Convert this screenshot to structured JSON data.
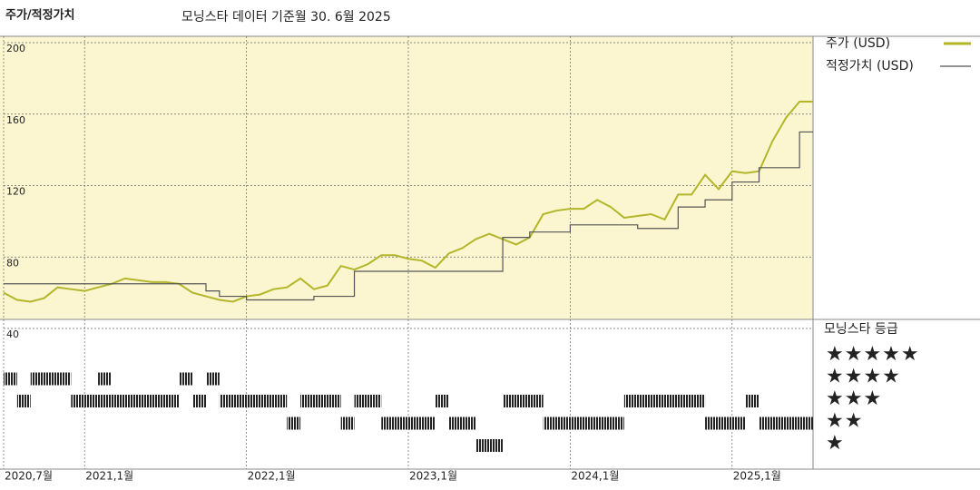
{
  "chart_data": {
    "type": "line",
    "title": "주가/적정가치",
    "subtitle": "모닝스타 데이터 기준월 30. 6월 2025",
    "x": [
      "2020-07",
      "2020-08",
      "2020-09",
      "2020-10",
      "2020-11",
      "2020-12",
      "2021-01",
      "2021-02",
      "2021-03",
      "2021-04",
      "2021-05",
      "2021-06",
      "2021-07",
      "2021-08",
      "2021-09",
      "2021-10",
      "2021-11",
      "2021-12",
      "2022-01",
      "2022-02",
      "2022-03",
      "2022-04",
      "2022-05",
      "2022-06",
      "2022-07",
      "2022-08",
      "2022-09",
      "2022-10",
      "2022-11",
      "2022-12",
      "2023-01",
      "2023-02",
      "2023-03",
      "2023-04",
      "2023-05",
      "2023-06",
      "2023-07",
      "2023-08",
      "2023-09",
      "2023-10",
      "2023-11",
      "2023-12",
      "2024-01",
      "2024-02",
      "2024-03",
      "2024-04",
      "2024-05",
      "2024-06",
      "2024-07",
      "2024-08",
      "2024-09",
      "2024-10",
      "2024-11",
      "2024-12",
      "2025-01",
      "2025-02",
      "2025-03",
      "2025-04",
      "2025-05",
      "2025-06"
    ],
    "series": [
      {
        "name": "주가 (USD)",
        "color": "#b3b52a",
        "step": false,
        "values": [
          60,
          56,
          55,
          57,
          63,
          62,
          61,
          63,
          65,
          68,
          67,
          66,
          66,
          65,
          60,
          58,
          56,
          55,
          58,
          59,
          62,
          63,
          68,
          62,
          64,
          75,
          73,
          76,
          81,
          81,
          79,
          78,
          74,
          82,
          85,
          90,
          93,
          90,
          87,
          91,
          104,
          106,
          107,
          107,
          112,
          108,
          102,
          103,
          104,
          101,
          115,
          115,
          126,
          118,
          128,
          127,
          128,
          145,
          158,
          167
        ]
      },
      {
        "name": "적정가치 (USD)",
        "color": "#555555",
        "step": true,
        "values": [
          65,
          65,
          65,
          65,
          65,
          65,
          65,
          65,
          65,
          65,
          65,
          65,
          65,
          65,
          65,
          61,
          58,
          58,
          56,
          56,
          56,
          56,
          56,
          58,
          58,
          58,
          72,
          72,
          72,
          72,
          72,
          72,
          72,
          72,
          72,
          72,
          72,
          91,
          91,
          94,
          94,
          94,
          98,
          98,
          98,
          98,
          98,
          96,
          96,
          96,
          108,
          108,
          112,
          112,
          122,
          122,
          130,
          130,
          130,
          150
        ]
      }
    ],
    "ylim": [
      40,
      200
    ],
    "yticks": [
      40,
      80,
      120,
      160,
      200
    ],
    "xlim": [
      "2020-07",
      "2025-07"
    ],
    "xticks": [
      {
        "value": "2020-07",
        "label": "2020,7월"
      },
      {
        "value": "2021-01",
        "label": "2021,1월"
      },
      {
        "value": "2022-01",
        "label": "2022,1월"
      },
      {
        "value": "2023-01",
        "label": "2023,1월"
      },
      {
        "value": "2024-01",
        "label": "2024,1월"
      },
      {
        "value": "2025-01",
        "label": "2025,1월"
      }
    ],
    "grid": true,
    "rating_title": "모닝스타 등급",
    "rating_levels": [
      {
        "label": "★★★★★",
        "stars": 5,
        "bands": []
      },
      {
        "label": "★★★★",
        "stars": 4,
        "bands": [
          {
            "from": "2020-07",
            "to": "2020-08"
          },
          {
            "from": "2020-09",
            "to": "2020-12"
          },
          {
            "from": "2021-02",
            "to": "2021-03"
          },
          {
            "from": "2021-08",
            "to": "2021-09"
          },
          {
            "from": "2021-10",
            "to": "2021-11"
          }
        ]
      },
      {
        "label": "★★★",
        "stars": 3,
        "bands": [
          {
            "from": "2020-08",
            "to": "2020-09"
          },
          {
            "from": "2020-12",
            "to": "2021-08"
          },
          {
            "from": "2021-09",
            "to": "2021-10"
          },
          {
            "from": "2021-11",
            "to": "2022-04"
          },
          {
            "from": "2022-05",
            "to": "2022-08"
          },
          {
            "from": "2022-09",
            "to": "2022-11"
          },
          {
            "from": "2023-03",
            "to": "2023-04"
          },
          {
            "from": "2023-08",
            "to": "2023-11"
          },
          {
            "from": "2024-05",
            "to": "2024-11"
          },
          {
            "from": "2025-02",
            "to": "2025-03"
          }
        ]
      },
      {
        "label": "★★",
        "stars": 2,
        "bands": [
          {
            "from": "2022-04",
            "to": "2022-05"
          },
          {
            "from": "2022-08",
            "to": "2022-09"
          },
          {
            "from": "2022-11",
            "to": "2023-03"
          },
          {
            "from": "2023-04",
            "to": "2023-06"
          },
          {
            "from": "2023-11",
            "to": "2024-05"
          },
          {
            "from": "2024-11",
            "to": "2025-02"
          },
          {
            "from": "2025-03",
            "to": "2025-07"
          }
        ]
      },
      {
        "label": "★",
        "stars": 1,
        "bands": [
          {
            "from": "2023-06",
            "to": "2023-08"
          }
        ]
      }
    ]
  }
}
